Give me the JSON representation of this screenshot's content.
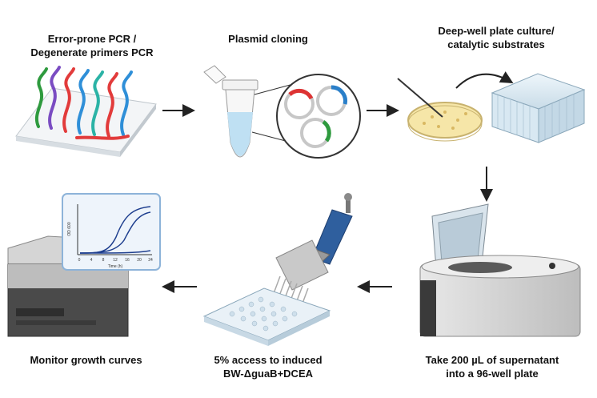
{
  "steps": [
    {
      "line1": "Error-prone PCR /",
      "line2": "Degenerate primers PCR"
    },
    {
      "line1": "Plasmid cloning",
      "line2": ""
    },
    {
      "line1": "Deep-well plate culture/",
      "line2": "catalytic substrates"
    },
    {
      "line1": "Take 200 µL of supernatant",
      "line2": "into a 96-well plate"
    },
    {
      "line1": "5% access to induced",
      "line2": "BW-ΔguaB+DCEA"
    },
    {
      "line1": "Monitor growth curves",
      "line2": ""
    }
  ],
  "growth_chart": {
    "ylabel": "OD 600",
    "xlabel": "Time (h)",
    "ticks": [
      "0",
      "4",
      "8",
      "12",
      "16",
      "20",
      "24"
    ]
  },
  "colors": {
    "arrow": "#222222",
    "dna": [
      "#e23b3b",
      "#2e9a3e",
      "#7a4cc2",
      "#2f8fd8",
      "#2bb3a6"
    ],
    "chart_line": "#1f3f8f",
    "liquid": "#bfe0f3"
  }
}
